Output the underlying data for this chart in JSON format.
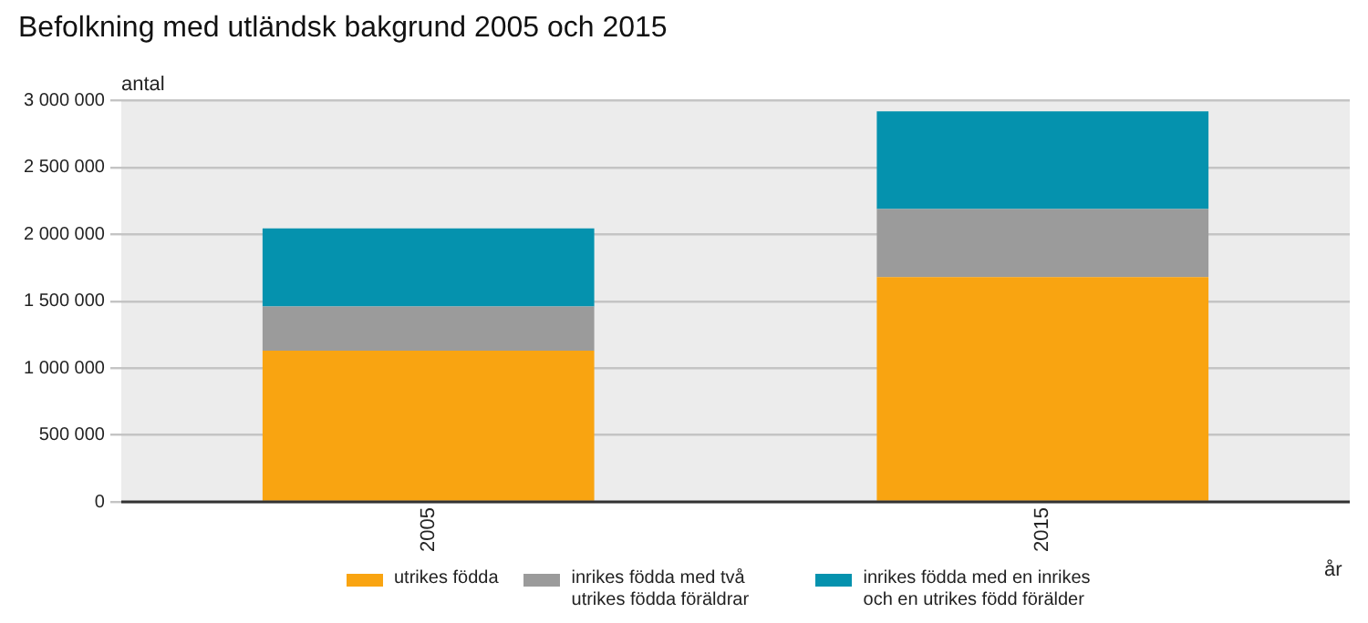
{
  "chart_data": {
    "type": "bar",
    "title": "Befolkning med utländsk bakgrund 2005 och 2015",
    "ylabel": "antal",
    "xlabel": "år",
    "categories": [
      "2005",
      "2015"
    ],
    "stacked": true,
    "series": [
      {
        "name": "utrikes födda",
        "color": "#f9a411",
        "values": [
          1130000,
          1680000
        ]
      },
      {
        "name": "inrikes födda med två utrikes födda föräldrar",
        "color": "#9b9b9b",
        "values": [
          330000,
          510000
        ]
      },
      {
        "name": "inrikes födda med en inrikes och en utrikes född förälder",
        "color": "#0592ae",
        "values": [
          585000,
          730000
        ]
      }
    ],
    "ylim": [
      0,
      3000000
    ],
    "yticks": [
      {
        "value": 0,
        "label": "0"
      },
      {
        "value": 500000,
        "label": "500 000"
      },
      {
        "value": 1000000,
        "label": "1 000 000"
      },
      {
        "value": 1500000,
        "label": "1 500 000"
      },
      {
        "value": 2000000,
        "label": "2 000 000"
      },
      {
        "value": 2500000,
        "label": "2 500 000"
      },
      {
        "value": 3000000,
        "label": "3 000 000"
      }
    ],
    "grid": "y",
    "legend": "bottom"
  }
}
